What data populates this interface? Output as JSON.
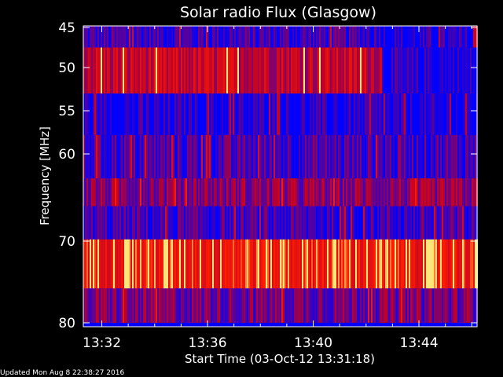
{
  "chart_data": {
    "type": "heatmap",
    "title": "Solar radio Flux (Glasgow)",
    "xlabel": "Start Time (03-Oct-12 13:31:18)",
    "ylabel": "Frequency [MHz]",
    "x_ticks": [
      "13:32",
      "13:36",
      "13:40",
      "13:44"
    ],
    "y_ticks": [
      "45",
      "50",
      "55",
      "60",
      "70",
      "80"
    ],
    "y_tick_values": [
      45,
      50,
      55,
      60,
      70,
      80
    ],
    "x_tick_values": [
      32,
      36,
      40,
      44
    ],
    "xlim": [
      31.3,
      46.2
    ],
    "ylim": [
      80,
      44.5
    ],
    "bands": [
      {
        "from": 44.5,
        "to": 47.5,
        "level": 0.15,
        "after_change": 0.05
      },
      {
        "from": 47.5,
        "to": 53.0,
        "level": 0.55,
        "after_change": 0.05
      },
      {
        "from": 53.0,
        "to": 57.8,
        "level": 0.05,
        "after_change": 0.02
      },
      {
        "from": 57.8,
        "to": 62.8,
        "level": 0.18,
        "after_change": 0.18
      },
      {
        "from": 62.8,
        "to": 66.0,
        "level": 0.35,
        "after_change": 0.35
      },
      {
        "from": 66.0,
        "to": 69.8,
        "level": 0.15,
        "after_change": 0.15
      },
      {
        "from": 69.8,
        "to": 75.8,
        "level": 0.85,
        "after_change": 0.85
      },
      {
        "from": 75.8,
        "to": 80.0,
        "level": 0.3,
        "after_change": 0.3
      }
    ],
    "change_time": 42.6,
    "colors": {
      "low": "#0000ff",
      "mid": "#c00030",
      "high": "#ff2000",
      "peak": "#ffe080"
    }
  },
  "footer": "Updated Mon Aug  8 22:38:27 2016"
}
